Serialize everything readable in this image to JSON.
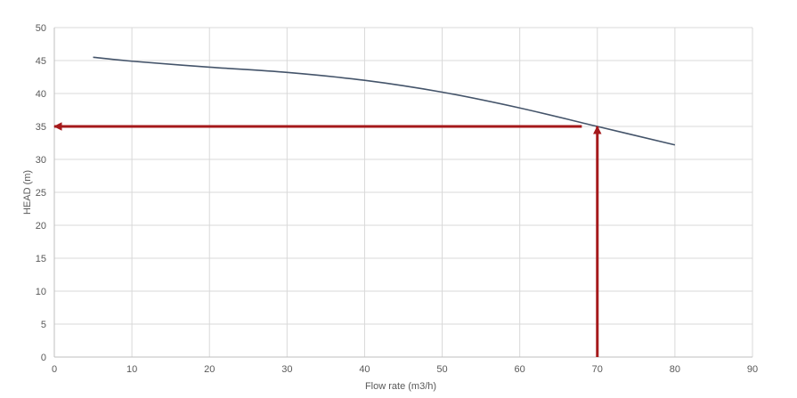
{
  "chart_data": {
    "type": "line",
    "title": "",
    "xlabel": "Flow rate (m3/h)",
    "ylabel": "HEAD (m)",
    "xlim": [
      0,
      90
    ],
    "ylim": [
      0,
      50
    ],
    "xticks": [
      0,
      10,
      20,
      30,
      40,
      50,
      60,
      70,
      80,
      90
    ],
    "yticks": [
      0,
      5,
      10,
      15,
      20,
      25,
      30,
      35,
      40,
      45,
      50
    ],
    "grid": true,
    "legend": "none",
    "series": [
      {
        "x": [
          5,
          10,
          20,
          30,
          40,
          50,
          60,
          70,
          80
        ],
        "y": [
          45.5,
          44.9,
          44.0,
          43.2,
          42.0,
          40.2,
          37.8,
          35.0,
          32.2
        ],
        "color": "#44546a"
      }
    ],
    "annotations": [
      {
        "type": "arrow",
        "from": [
          70,
          0
        ],
        "to": [
          70,
          35
        ],
        "color": "#a5191b"
      },
      {
        "type": "arrow",
        "from": [
          68,
          35
        ],
        "to": [
          0,
          35
        ],
        "color": "#a5191b"
      }
    ],
    "colors": {
      "grid": "#d9d9d9",
      "axis": "#bfbfbf",
      "text": "#595959"
    }
  }
}
